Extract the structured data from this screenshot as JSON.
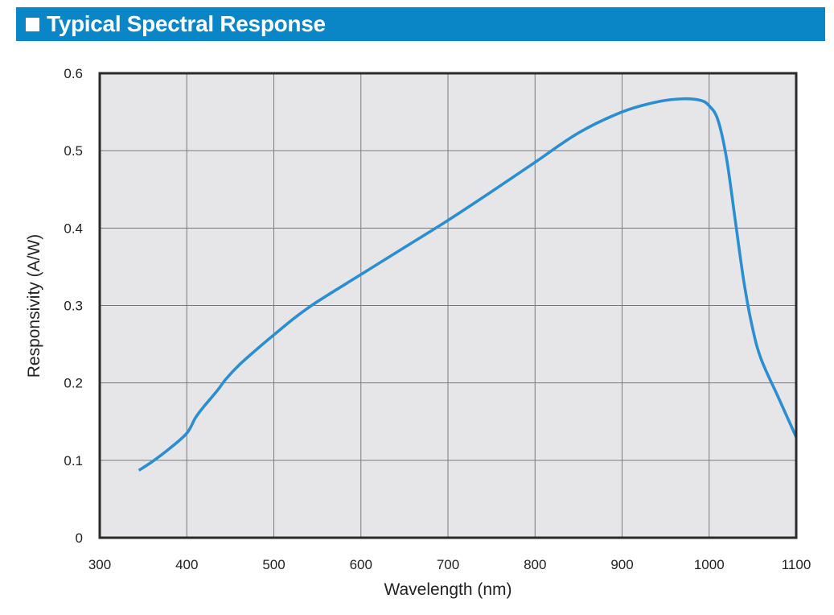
{
  "header": {
    "title": "Typical Spectral Response"
  },
  "colors": {
    "banner": "#0a86c6",
    "plot_background": "#e6e6e8",
    "series_line": "#2b8ed0",
    "grid": "#7a7a7a",
    "frame": "#2a2a2a"
  },
  "chart_data": {
    "type": "line",
    "title": "Typical Spectral Response",
    "xlabel": "Wavelength (nm)",
    "ylabel": "Responsivity (A/W)",
    "xlim": [
      300,
      1100
    ],
    "ylim": [
      0,
      0.6
    ],
    "xticks": [
      300,
      400,
      500,
      600,
      700,
      800,
      900,
      1000,
      1100
    ],
    "yticks": [
      0,
      0.1,
      0.2,
      0.3,
      0.4,
      0.5,
      0.6
    ],
    "xtick_labels": [
      "300",
      "400",
      "500",
      "600",
      "700",
      "800",
      "900",
      "1000",
      "1100"
    ],
    "ytick_labels": [
      "0",
      "0.1",
      "0.2",
      "0.3",
      "0.4",
      "0.5",
      "0.6"
    ],
    "grid": true,
    "series": [
      {
        "name": "Responsivity",
        "x": [
          345,
          360,
          380,
          400,
          410,
          420,
          435,
          445,
          460,
          480,
          500,
          525,
          550,
          600,
          650,
          700,
          750,
          800,
          850,
          900,
          940,
          970,
          990,
          1000,
          1010,
          1020,
          1030,
          1040,
          1050,
          1060,
          1080,
          1100
        ],
        "y": [
          0.087,
          0.098,
          0.115,
          0.135,
          0.155,
          0.17,
          0.19,
          0.205,
          0.223,
          0.243,
          0.262,
          0.285,
          0.305,
          0.34,
          0.375,
          0.41,
          0.447,
          0.485,
          0.523,
          0.55,
          0.563,
          0.567,
          0.565,
          0.558,
          0.54,
          0.49,
          0.41,
          0.33,
          0.27,
          0.23,
          0.18,
          0.13
        ]
      }
    ]
  }
}
